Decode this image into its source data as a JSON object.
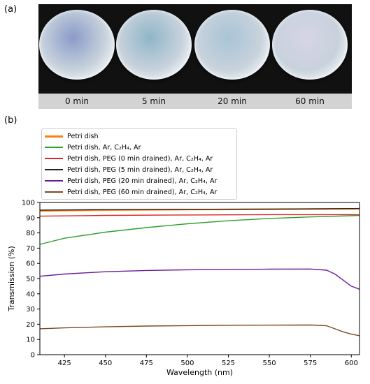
{
  "panels": {
    "a_label": "(a)",
    "b_label": "(b)"
  },
  "photo": {
    "dishes": [
      {
        "time_label": "0 min",
        "tint": "#8a9bc9"
      },
      {
        "time_label": "5 min",
        "tint": "#8fb5c9"
      },
      {
        "time_label": "20 min",
        "tint": "#a8c4d6"
      },
      {
        "time_label": "60 min",
        "tint": "#d6d4e6"
      }
    ]
  },
  "chart_data": {
    "type": "line",
    "title": "",
    "xlabel": "Wavelength (nm)",
    "ylabel": "Transmission (%)",
    "xlim": [
      410,
      605
    ],
    "ylim": [
      0,
      100
    ],
    "xticks": [
      425,
      450,
      475,
      500,
      525,
      550,
      575,
      600
    ],
    "yticks": [
      0,
      10,
      20,
      30,
      40,
      50,
      60,
      70,
      80,
      90,
      100
    ],
    "grid": false,
    "legend_position": "above-plot-left",
    "series": [
      {
        "name": "Petri dish",
        "color": "#ff7f0e",
        "x": [
          410,
          450,
          500,
          550,
          600,
          605
        ],
        "y": [
          94.5,
          95.0,
          95.3,
          95.5,
          95.8,
          95.9
        ]
      },
      {
        "name": "Petri dish, Ar, C₂H₄, Ar",
        "color": "#2ca02c",
        "x": [
          410,
          425,
          450,
          475,
          500,
          525,
          550,
          575,
          600,
          605
        ],
        "y": [
          72.5,
          76.5,
          80.5,
          83.5,
          86.0,
          88.0,
          89.5,
          90.5,
          91.3,
          91.5
        ]
      },
      {
        "name": "Petri dish, PEG (0 min drained), Ar, C₂H₄, Ar",
        "color": "#d62728",
        "x": [
          410,
          450,
          500,
          550,
          600,
          605
        ],
        "y": [
          91.0,
          91.5,
          91.8,
          92.0,
          92.0,
          91.9
        ]
      },
      {
        "name": "Petri dish, PEG (5 min drained), Ar, C₂H₄, Ar",
        "color": "#222222",
        "x": [
          410,
          450,
          500,
          550,
          600,
          605
        ],
        "y": [
          95.0,
          95.3,
          95.5,
          95.7,
          96.0,
          96.0
        ]
      },
      {
        "name": "Petri dish, PEG (20 min drained), Ar, C₂H₄, Ar",
        "color": "#6a1b9a",
        "x": [
          410,
          425,
          450,
          475,
          500,
          525,
          550,
          575,
          585,
          590,
          595,
          600,
          605
        ],
        "y": [
          51.5,
          53.0,
          54.5,
          55.3,
          55.8,
          56.0,
          56.2,
          56.3,
          55.5,
          53.0,
          49.0,
          45.0,
          43.0
        ]
      },
      {
        "name": "Petri dish, PEG (60 min drained), Ar, C₂H₄, Ar",
        "color": "#7b4a1e",
        "x": [
          410,
          425,
          450,
          475,
          500,
          525,
          550,
          575,
          585,
          590,
          595,
          600,
          605
        ],
        "y": [
          17.0,
          17.6,
          18.3,
          18.8,
          19.1,
          19.3,
          19.4,
          19.5,
          19.0,
          17.0,
          15.0,
          13.5,
          12.5
        ]
      }
    ]
  }
}
